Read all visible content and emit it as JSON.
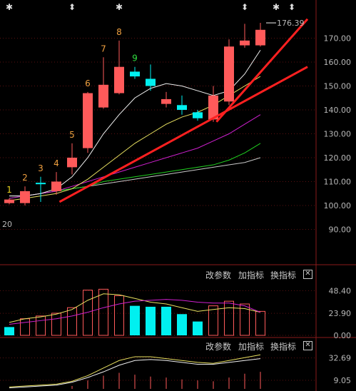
{
  "main_chart": {
    "price_ticks": [
      "170.00",
      "160.00",
      "150.00",
      "140.00",
      "130.00",
      "120.00",
      "110.00",
      "100.00",
      "90.00"
    ],
    "price_range": [
      80,
      180
    ],
    "high_marker": "176.39",
    "left_marker": "20",
    "top_markers": [
      {
        "candle": 0,
        "symbol": "✱"
      },
      {
        "candle": 4,
        "symbol": "⬍"
      },
      {
        "candle": 7,
        "symbol": "✱"
      },
      {
        "candle": 15,
        "symbol": "⬍"
      },
      {
        "candle": 17,
        "symbol": "✱"
      },
      {
        "candle": 18,
        "symbol": "⬍"
      }
    ],
    "candles": [
      {
        "o": 101.0,
        "c": 102.5,
        "h": 103.0,
        "l": 100.5,
        "color": "red"
      },
      {
        "o": 101.0,
        "c": 106.0,
        "h": 108.0,
        "l": 100.0,
        "color": "red"
      },
      {
        "o": 109.5,
        "c": 109.0,
        "h": 112.0,
        "l": 101.5,
        "color": "cyan"
      },
      {
        "o": 106.0,
        "c": 110.0,
        "h": 114.0,
        "l": 104.5,
        "color": "red"
      },
      {
        "o": 116.0,
        "c": 120.0,
        "h": 126.0,
        "l": 113.0,
        "color": "red"
      },
      {
        "o": 124.0,
        "c": 147.0,
        "h": 147.5,
        "l": 122.0,
        "color": "red"
      },
      {
        "o": 141.0,
        "c": 150.5,
        "h": 162.0,
        "l": 140.5,
        "color": "red"
      },
      {
        "o": 147.0,
        "c": 158.0,
        "h": 169.0,
        "l": 146.5,
        "color": "red"
      },
      {
        "o": 156.0,
        "c": 154.0,
        "h": 158.0,
        "l": 153.0,
        "color": "cyan"
      },
      {
        "o": 153.0,
        "c": 150.0,
        "h": 159.0,
        "l": 148.0,
        "color": "cyan"
      },
      {
        "o": 144.5,
        "c": 142.5,
        "h": 147.5,
        "l": 141.0,
        "color": "red"
      },
      {
        "o": 142.0,
        "c": 140.0,
        "h": 146.0,
        "l": 138.0,
        "color": "cyan"
      },
      {
        "o": 139.0,
        "c": 136.5,
        "h": 140.0,
        "l": 135.5,
        "color": "cyan"
      },
      {
        "o": 136.0,
        "c": 146.0,
        "h": 150.0,
        "l": 135.0,
        "color": "red"
      },
      {
        "o": 143.5,
        "c": 166.5,
        "h": 169.5,
        "l": 142.0,
        "color": "red"
      },
      {
        "o": 167.0,
        "c": 169.0,
        "h": 176.0,
        "l": 166.0,
        "color": "red"
      },
      {
        "o": 167.0,
        "c": 173.5,
        "h": 176.4,
        "l": 166.5,
        "color": "red"
      }
    ],
    "wave_labels": [
      {
        "candle": 0,
        "text": "1",
        "color": "#e8d21f"
      },
      {
        "candle": 1,
        "text": "2",
        "color": "#f0a040"
      },
      {
        "candle": 2,
        "text": "3",
        "color": "#f0a040"
      },
      {
        "candle": 3,
        "text": "4",
        "color": "#f0a040"
      },
      {
        "candle": 4,
        "text": "5",
        "color": "#f0a040"
      },
      {
        "candle": 5,
        "text": "6",
        "color": "#f0a040"
      },
      {
        "candle": 6,
        "text": "7",
        "color": "#f0a040"
      },
      {
        "candle": 7,
        "text": "8",
        "color": "#f0a040"
      },
      {
        "candle": 8,
        "text": "9",
        "color": "#30e040"
      }
    ],
    "ma_white": [
      104,
      104,
      105,
      107,
      112,
      120,
      130,
      138,
      145,
      149,
      151,
      150,
      148,
      146,
      148,
      155,
      165
    ],
    "ma_yellow": [
      102,
      103,
      104,
      105,
      107,
      111,
      116,
      121,
      126,
      130,
      134,
      137,
      139,
      142,
      146,
      150,
      154
    ],
    "ma_magenta": [
      103,
      104,
      105,
      106,
      108,
      110,
      112,
      114,
      116,
      118,
      120,
      122,
      124,
      127,
      130,
      134,
      138
    ],
    "ma_green": [
      103,
      104,
      105,
      106,
      107,
      108,
      110,
      111,
      112,
      113,
      114,
      115,
      116,
      117,
      119,
      122,
      126
    ],
    "ma_gray": [
      104,
      104,
      105,
      106,
      107,
      108,
      109,
      110,
      111,
      112,
      113,
      114,
      115,
      116,
      117,
      118,
      120
    ],
    "trend_lines": [
      {
        "from": [
          3.2,
          101.5
        ],
        "to": [
          19.0,
          158.0
        ]
      },
      {
        "from": [
          13.2,
          135.0
        ],
        "to": [
          19.0,
          178.0
        ]
      }
    ],
    "colors": {
      "up": "#ff5a5a",
      "down": "#00f0f0",
      "trend": "#ff2020"
    }
  },
  "panel2": {
    "buttons": {
      "change_params": "改参数",
      "add_indicator": "加指标",
      "switch_indicator": "换指标",
      "close": "✕"
    },
    "ticks": [
      "48.40",
      "23.90",
      "0.00"
    ],
    "range": [
      0,
      58
    ],
    "bars": [
      {
        "v": 9,
        "color": "cyan"
      },
      {
        "v": 18,
        "color": "red"
      },
      {
        "v": 21,
        "color": "red"
      },
      {
        "v": 24,
        "color": "red"
      },
      {
        "v": 30,
        "color": "red"
      },
      {
        "v": 49,
        "color": "red"
      },
      {
        "v": 50,
        "color": "red"
      },
      {
        "v": 43,
        "color": "red"
      },
      {
        "v": 32,
        "color": "cyan"
      },
      {
        "v": 31,
        "color": "cyan"
      },
      {
        "v": 31,
        "color": "cyan"
      },
      {
        "v": 23,
        "color": "cyan"
      },
      {
        "v": 15,
        "color": "cyan"
      },
      {
        "v": 32,
        "color": "red"
      },
      {
        "v": 37,
        "color": "red"
      },
      {
        "v": 34,
        "color": "red"
      },
      {
        "v": 26,
        "color": "red"
      }
    ],
    "line_yellow": [
      14,
      18,
      20,
      23,
      28,
      38,
      45,
      44,
      40,
      36,
      34,
      30,
      26,
      28,
      30,
      29,
      25
    ],
    "line_magenta": [
      12,
      14,
      16,
      18,
      21,
      25,
      30,
      34,
      37,
      38,
      39,
      38,
      36,
      35,
      35,
      32,
      25
    ]
  },
  "panel3": {
    "buttons": {
      "change_params": "改参数",
      "add_indicator": "加指标",
      "switch_indicator": "换指标",
      "close": "✕"
    },
    "ticks": [
      "32.69",
      "9.05"
    ],
    "range": [
      0,
      40
    ],
    "bars": [
      0,
      0,
      0,
      0,
      3,
      9,
      14,
      17,
      15,
      13,
      12,
      10,
      9,
      8,
      12,
      16,
      18
    ],
    "line_yellow": [
      2,
      3,
      4,
      5,
      8,
      14,
      22,
      30,
      34,
      34,
      32,
      30,
      28,
      27,
      30,
      33,
      36
    ],
    "line_white": [
      1,
      2,
      3,
      4,
      7,
      12,
      18,
      25,
      30,
      31,
      30,
      28,
      26,
      26,
      28,
      30,
      32
    ]
  }
}
